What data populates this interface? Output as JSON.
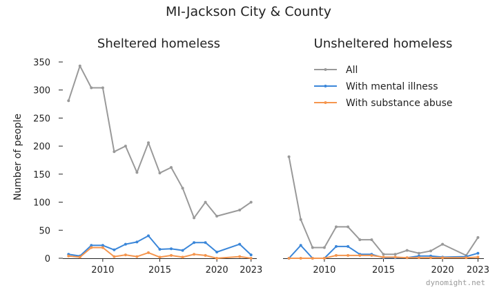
{
  "chart_data": {
    "type": "line",
    "title": "MI-Jackson City & County",
    "watermark": "dynomight.net",
    "ylabel": "Number of people",
    "xlim": [
      2006.5,
      2023.5
    ],
    "ylim": [
      0,
      350
    ],
    "xticks": [
      2010,
      2015,
      2020,
      2023
    ],
    "yticks": [
      0,
      50,
      100,
      150,
      200,
      250,
      300,
      350
    ],
    "grid": false,
    "legend_placement": "top-right of right panel",
    "colors": {
      "All": "#999999",
      "With mental illness": "#3a86d9",
      "With substance abuse": "#f5954d"
    },
    "legend": [
      "All",
      "With mental illness",
      "With substance abuse"
    ],
    "panels": [
      {
        "title": "Sheltered homeless",
        "series": [
          {
            "name": "All",
            "x": [
              2007,
              2008,
              2009,
              2010,
              2011,
              2012,
              2013,
              2014,
              2015,
              2016,
              2017,
              2018,
              2019,
              2020,
              2022,
              2023
            ],
            "y": [
              281,
              343,
              304,
              304,
              190,
              200,
              153,
              206,
              152,
              162,
              125,
              72,
              100,
              75,
              86,
              100
            ]
          },
          {
            "name": "With mental illness",
            "x": [
              2007,
              2008,
              2009,
              2010,
              2011,
              2012,
              2013,
              2014,
              2015,
              2016,
              2017,
              2018,
              2019,
              2020,
              2022,
              2023
            ],
            "y": [
              7,
              4,
              23,
              23,
              15,
              25,
              29,
              40,
              16,
              17,
              14,
              28,
              28,
              11,
              25,
              6
            ]
          },
          {
            "name": "With substance abuse",
            "x": [
              2007,
              2008,
              2009,
              2010,
              2011,
              2012,
              2013,
              2014,
              2015,
              2016,
              2017,
              2018,
              2019,
              2020,
              2022,
              2023
            ],
            "y": [
              4,
              2,
              19,
              19,
              3,
              6,
              3,
              10,
              2,
              5,
              2,
              7,
              5,
              0,
              3,
              0
            ]
          }
        ]
      },
      {
        "title": "Unsheltered homeless",
        "series": [
          {
            "name": "All",
            "x": [
              2007,
              2008,
              2009,
              2010,
              2011,
              2012,
              2013,
              2014,
              2015,
              2016,
              2017,
              2018,
              2019,
              2020,
              2022,
              2023
            ],
            "y": [
              181,
              69,
              19,
              19,
              56,
              56,
              33,
              33,
              7,
              7,
              14,
              9,
              13,
              25,
              5,
              37
            ]
          },
          {
            "name": "With mental illness",
            "x": [
              2007,
              2008,
              2009,
              2010,
              2011,
              2012,
              2013,
              2014,
              2015,
              2016,
              2017,
              2018,
              2019,
              2020,
              2022,
              2023
            ],
            "y": [
              0,
              23,
              0,
              0,
              21,
              21,
              7,
              7,
              1,
              1,
              1,
              4,
              4,
              2,
              3,
              9
            ]
          },
          {
            "name": "With substance abuse",
            "x": [
              2007,
              2008,
              2009,
              2010,
              2011,
              2012,
              2013,
              2014,
              2015,
              2016,
              2017,
              2018,
              2019,
              2020,
              2022,
              2023
            ],
            "y": [
              0,
              0,
              0,
              0,
              5,
              5,
              5,
              5,
              2,
              2,
              1,
              1,
              1,
              1,
              1,
              2
            ]
          }
        ]
      }
    ]
  }
}
